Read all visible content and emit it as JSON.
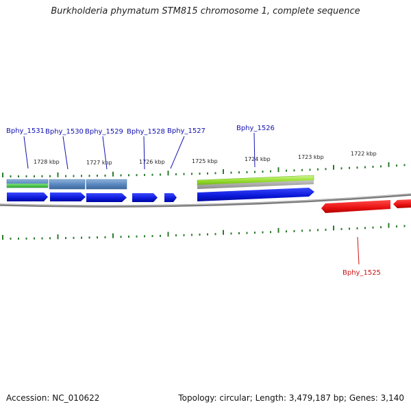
{
  "title": "Burkholderia phymatum STM815 chromosome 1, complete sequence",
  "footer": {
    "accession": "Accession: NC_010622",
    "summary": "Topology: circular; Length: 3,479,187 bp; Genes: 3,140"
  },
  "colors": {
    "forward_cds": "#0a18d8",
    "reverse_cds": "#e81010",
    "blue_feature": "#5a88c0",
    "green_feature": "#9ae030",
    "backbone": "#808080",
    "tick": "#2a7a2a",
    "label_forward": "#1010b0",
    "label_reverse": "#cc1010"
  },
  "kbp_labels": [
    "1728 kbp",
    "1727 kbp",
    "1726 kbp",
    "1725 kbp",
    "1724 kbp",
    "1723 kbp",
    "1722 kbp"
  ],
  "gene_labels": [
    {
      "name": "Bphy_1531",
      "strand": "forward"
    },
    {
      "name": "Bphy_1530",
      "strand": "forward"
    },
    {
      "name": "Bphy_1529",
      "strand": "forward"
    },
    {
      "name": "Bphy_1528",
      "strand": "forward"
    },
    {
      "name": "Bphy_1527",
      "strand": "forward"
    },
    {
      "name": "Bphy_1526",
      "strand": "forward"
    },
    {
      "name": "Bphy_1525",
      "strand": "reverse"
    }
  ]
}
